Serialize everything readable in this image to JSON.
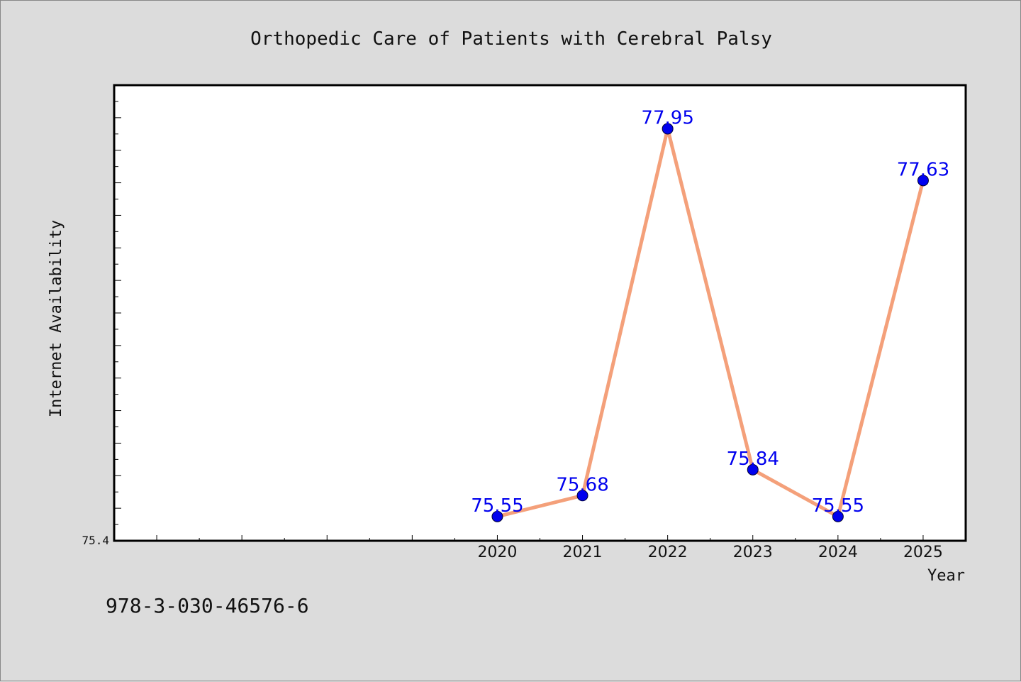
{
  "chart_data": {
    "type": "line",
    "title": "Orthopedic Care of Patients with Cerebral Palsy",
    "xlabel": "Year",
    "ylabel": "Internet Availability",
    "x": [
      2020,
      2021,
      2022,
      2023,
      2024,
      2025
    ],
    "x_tick_labels": [
      "2020",
      "2021",
      "2022",
      "2023",
      "2024",
      "2025"
    ],
    "xlim": [
      2015.5,
      2025.5
    ],
    "ylim": [
      75.4,
      78.22
    ],
    "y_tick_labels": [
      "75.4"
    ],
    "series": [
      {
        "values": [
          75.55,
          75.68,
          77.95,
          75.84,
          75.55,
          77.63
        ],
        "data_labels": [
          "75.55",
          "75.68",
          "77.95",
          "75.84",
          "75.55",
          "77.63"
        ],
        "line_color": "#f4a07a",
        "marker_color": "#0000ee",
        "label_color": "#0000ee"
      }
    ],
    "grid": false,
    "legend": "none"
  },
  "footer": {
    "isbn": "978-3-030-46576-6"
  },
  "colors": {
    "background": "#dcdcdc",
    "plot_background": "#ffffff",
    "axis": "#000000"
  }
}
